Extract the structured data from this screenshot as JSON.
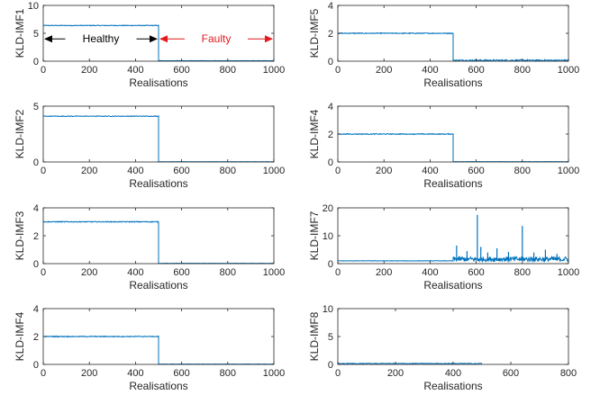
{
  "colors": {
    "series": "#0072bd",
    "axis": "#262626",
    "healthy_arrow": "#000000",
    "faulty_arrow": "#e41a1c"
  },
  "chart_data": [
    {
      "id": "imf1",
      "type": "line",
      "ylabel": "KLD-IMF1",
      "xlabel": "Realisations",
      "xlim": [
        0,
        1000
      ],
      "ylim": [
        0,
        10
      ],
      "xticks": [
        "0",
        "200",
        "400",
        "600",
        "800",
        "1000"
      ],
      "xtick_values": [
        0,
        200,
        400,
        600,
        800,
        1000
      ],
      "yticks": [
        "0",
        "5",
        "10"
      ],
      "ytick_values": [
        0,
        5,
        10
      ],
      "segments": [
        {
          "from": 0,
          "to": 500,
          "level": 6.4,
          "noise": 0.06
        },
        {
          "from": 500,
          "to": 1000,
          "level": 0.08,
          "noise": 0.03
        }
      ],
      "spikes": [],
      "annotations": [
        {
          "text": "Healthy",
          "color": "#000000",
          "x_from": 0,
          "x_to": 500,
          "y": 4
        },
        {
          "text": "Faulty",
          "color": "#e41a1c",
          "x_from": 500,
          "x_to": 1000,
          "y": 4
        }
      ]
    },
    {
      "id": "imf5",
      "type": "line",
      "ylabel": "KLD-IMF5",
      "xlabel": "Realisations",
      "xlim": [
        0,
        1000
      ],
      "ylim": [
        0,
        4
      ],
      "xticks": [
        "0",
        "200",
        "400",
        "600",
        "800",
        "1000"
      ],
      "xtick_values": [
        0,
        200,
        400,
        600,
        800,
        1000
      ],
      "yticks": [
        "0",
        "2",
        "4"
      ],
      "ytick_values": [
        0,
        2,
        4
      ],
      "segments": [
        {
          "from": 0,
          "to": 500,
          "level": 2.0,
          "noise": 0.03
        },
        {
          "from": 500,
          "to": 1000,
          "level": 0.06,
          "noise": 0.05
        }
      ],
      "spikes": []
    },
    {
      "id": "imf2",
      "type": "line",
      "ylabel": "KLD-IMF2",
      "xlabel": "Realisations",
      "xlim": [
        0,
        1000
      ],
      "ylim": [
        0,
        5
      ],
      "xticks": [
        "0",
        "200",
        "400",
        "600",
        "800",
        "1000"
      ],
      "xtick_values": [
        0,
        200,
        400,
        600,
        800,
        1000
      ],
      "yticks": [
        "0",
        "5"
      ],
      "ytick_values": [
        0,
        5
      ],
      "segments": [
        {
          "from": 0,
          "to": 500,
          "level": 4.1,
          "noise": 0.03
        },
        {
          "from": 500,
          "to": 1000,
          "level": 0.02,
          "noise": 0.01
        }
      ],
      "spikes": []
    },
    {
      "id": "imf4a",
      "type": "line",
      "ylabel": "KLD-IMF4",
      "xlabel": "Realisations",
      "xlim": [
        0,
        1000
      ],
      "ylim": [
        0,
        4
      ],
      "xticks": [
        "0",
        "200",
        "400",
        "600",
        "800",
        "1000"
      ],
      "xtick_values": [
        0,
        200,
        400,
        600,
        800,
        1000
      ],
      "yticks": [
        "0",
        "2",
        "4"
      ],
      "ytick_values": [
        0,
        2,
        4
      ],
      "segments": [
        {
          "from": 0,
          "to": 500,
          "level": 2.0,
          "noise": 0.03
        },
        {
          "from": 500,
          "to": 1000,
          "level": 0.02,
          "noise": 0.01
        }
      ],
      "spikes": []
    },
    {
      "id": "imf3",
      "type": "line",
      "ylabel": "KLD-IMF3",
      "xlabel": "Realisations",
      "xlim": [
        0,
        1000
      ],
      "ylim": [
        0,
        4
      ],
      "xticks": [
        "0",
        "200",
        "400",
        "600",
        "800",
        "1000"
      ],
      "xtick_values": [
        0,
        200,
        400,
        600,
        800,
        1000
      ],
      "yticks": [
        "0",
        "2",
        "4"
      ],
      "ytick_values": [
        0,
        2,
        4
      ],
      "segments": [
        {
          "from": 0,
          "to": 500,
          "level": 3.0,
          "noise": 0.03
        },
        {
          "from": 500,
          "to": 1000,
          "level": 0.02,
          "noise": 0.01
        }
      ],
      "spikes": []
    },
    {
      "id": "imf7",
      "type": "line",
      "ylabel": "KLD-IMF7",
      "xlabel": "Realisations",
      "xlim": [
        0,
        1000
      ],
      "ylim": [
        0,
        20
      ],
      "xticks": [
        "0",
        "200",
        "400",
        "600",
        "800",
        "1000"
      ],
      "xtick_values": [
        0,
        200,
        400,
        600,
        800,
        1000
      ],
      "yticks": [
        "0",
        "10",
        "20"
      ],
      "ytick_values": [
        0,
        10,
        20
      ],
      "segments": [
        {
          "from": 0,
          "to": 500,
          "level": 1.0,
          "noise": 0.08
        },
        {
          "from": 500,
          "to": 1000,
          "level": 1.6,
          "noise": 0.9
        }
      ],
      "spikes": [
        [
          515,
          6.5
        ],
        [
          560,
          4.5
        ],
        [
          605,
          17.5
        ],
        [
          620,
          6
        ],
        [
          650,
          4
        ],
        [
          690,
          5.5
        ],
        [
          740,
          4.2
        ],
        [
          800,
          13.5
        ],
        [
          850,
          4
        ],
        [
          900,
          5
        ],
        [
          950,
          3.5
        ]
      ]
    },
    {
      "id": "imf4b",
      "type": "line",
      "ylabel": "KLD-IMF4",
      "xlabel": "Realisations",
      "xlim": [
        0,
        1000
      ],
      "ylim": [
        0,
        4
      ],
      "xticks": [
        "0",
        "200",
        "400",
        "600",
        "800",
        "1000"
      ],
      "xtick_values": [
        0,
        200,
        400,
        600,
        800,
        1000
      ],
      "yticks": [
        "0",
        "2",
        "4"
      ],
      "ytick_values": [
        0,
        2,
        4
      ],
      "segments": [
        {
          "from": 0,
          "to": 500,
          "level": 2.0,
          "noise": 0.03
        },
        {
          "from": 500,
          "to": 1000,
          "level": 0.02,
          "noise": 0.01
        }
      ],
      "spikes": []
    },
    {
      "id": "imf8",
      "type": "line",
      "ylabel": "KLD-IMF8",
      "xlabel": "Realisations",
      "xlim": [
        0,
        800
      ],
      "ylim": [
        0,
        10
      ],
      "xticks": [
        "0",
        "200",
        "400",
        "600",
        "800"
      ],
      "xtick_values": [
        0,
        200,
        400,
        600,
        800
      ],
      "yticks": [
        "0",
        "5",
        "10"
      ],
      "ytick_values": [
        0,
        5,
        10
      ],
      "segments": [
        {
          "from": 0,
          "to": 500,
          "level": 0.15,
          "noise": 0.08
        }
      ],
      "spikes": []
    }
  ]
}
